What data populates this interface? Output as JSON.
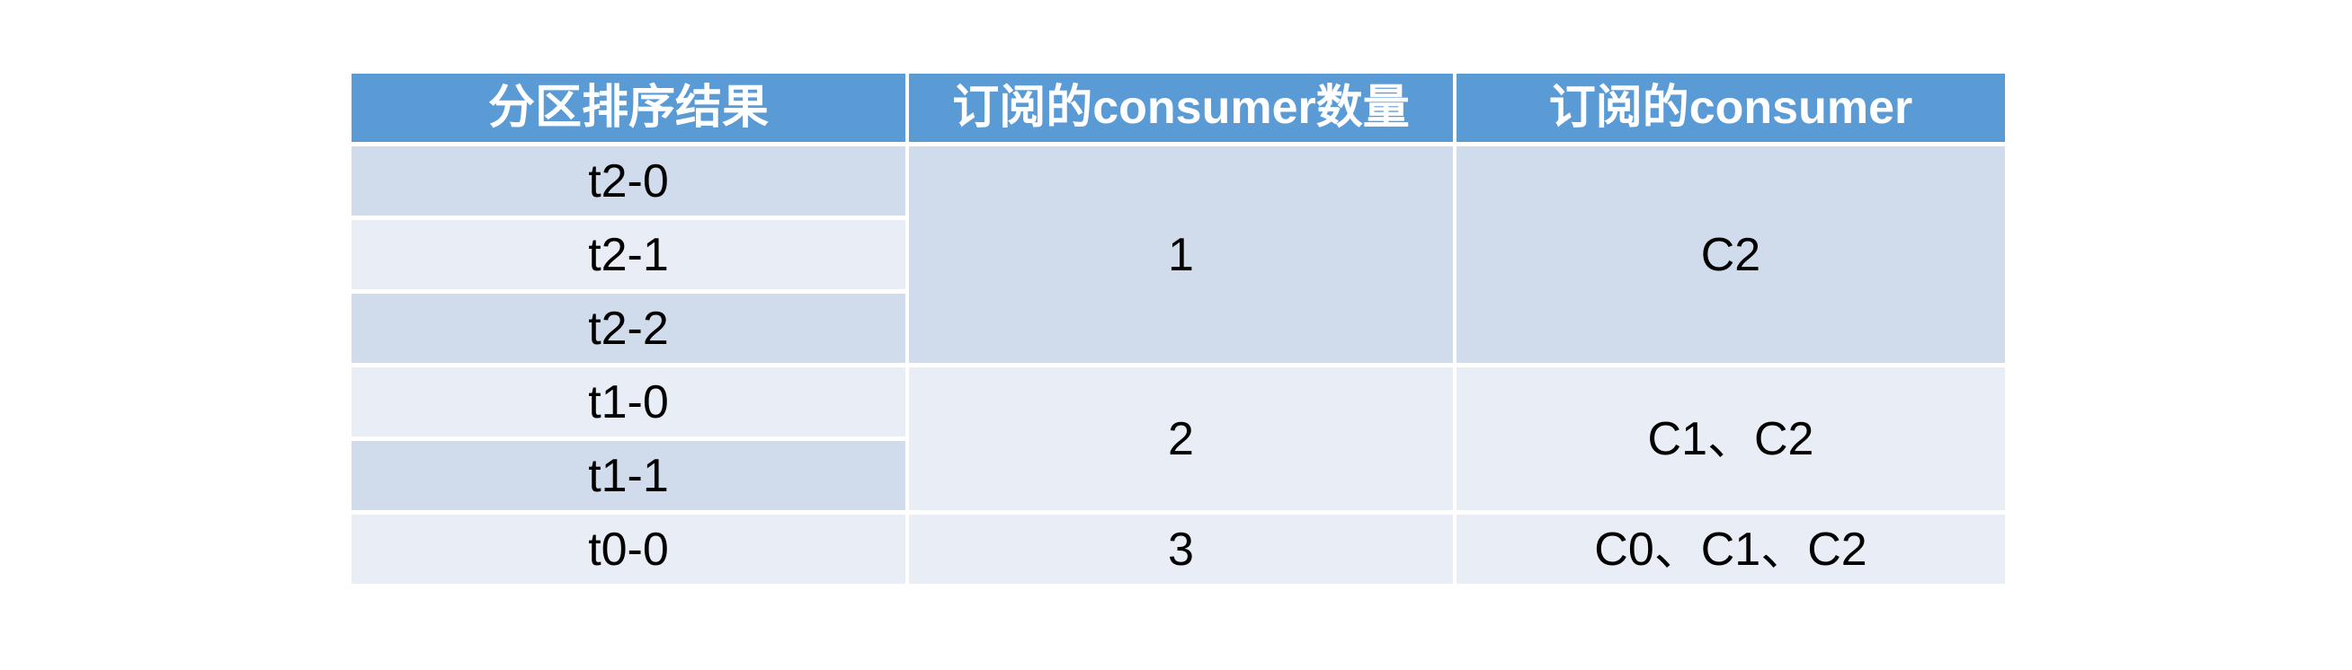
{
  "table": {
    "columns": [
      {
        "label": "分区排序结果"
      },
      {
        "label": "订阅的consumer数量"
      },
      {
        "label": "订阅的consumer"
      }
    ],
    "partitions": [
      {
        "label": "t2-0"
      },
      {
        "label": "t2-1"
      },
      {
        "label": "t2-2"
      },
      {
        "label": "t1-0"
      },
      {
        "label": "t1-1"
      },
      {
        "label": "t0-0"
      }
    ],
    "groups": [
      {
        "consumer_count": "1",
        "consumers": "C2",
        "partition_span": 3
      },
      {
        "consumer_count": "2",
        "consumers": "C1、C2",
        "partition_span": 2
      },
      {
        "consumer_count": "3",
        "consumers": "C0、C1、C2",
        "partition_span": 1
      }
    ],
    "colors": {
      "header_bg": "#5A9AD5",
      "header_text": "#FFFFFF",
      "row_dark": "#D0DBEC",
      "row_light": "#E9EDF6",
      "body_text": "#000000",
      "gridline": "#FFFFFF"
    }
  }
}
